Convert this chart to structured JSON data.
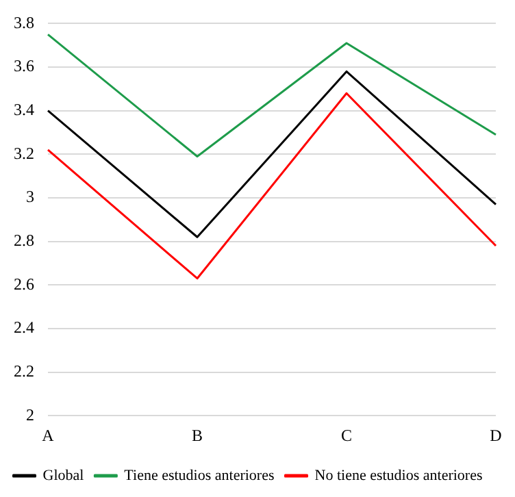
{
  "chart_data": {
    "type": "line",
    "categories": [
      "A",
      "B",
      "C",
      "D"
    ],
    "series": [
      {
        "name": "Global",
        "color": "#000000",
        "values": [
          3.4,
          2.82,
          3.58,
          2.97
        ]
      },
      {
        "name": "Tiene estudios anteriores",
        "color": "#1e9c4b",
        "values": [
          3.75,
          3.19,
          3.71,
          3.29
        ]
      },
      {
        "name": "No tiene estudios anteriores",
        "color": "#ff0000",
        "values": [
          3.22,
          2.63,
          3.48,
          2.78
        ]
      }
    ],
    "ylim": [
      2,
      3.8
    ],
    "yticks": [
      2,
      2.2,
      2.4,
      2.6,
      2.8,
      3,
      3.2,
      3.4,
      3.6,
      3.8
    ],
    "grid": "y",
    "legend": "bottom",
    "marker": "none",
    "line_style": "solid"
  }
}
